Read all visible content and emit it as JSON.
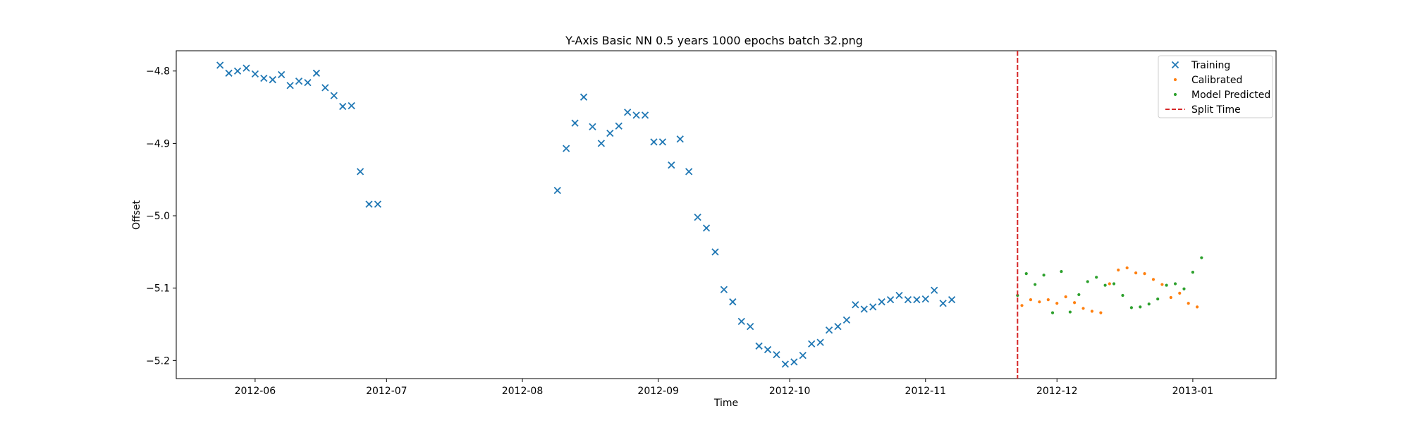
{
  "chart_data": {
    "type": "scatter",
    "title": "Y-Axis Basic NN 0.5 years 1000 epochs batch 32.png",
    "xlabel": "Time",
    "ylabel": "Offset",
    "xlim": [
      "2012-05-14",
      "2013-01-20"
    ],
    "ylim": [
      -5.225,
      -4.772
    ],
    "x_ticks": [
      "2012-06",
      "2012-07",
      "2012-08",
      "2012-09",
      "2012-10",
      "2012-11",
      "2012-12",
      "2013-01"
    ],
    "x_tick_dates": [
      "2012-06-01",
      "2012-07-01",
      "2012-08-01",
      "2012-09-01",
      "2012-10-01",
      "2012-11-01",
      "2012-12-01",
      "2013-01-01"
    ],
    "y_ticks": [
      -4.8,
      -4.9,
      -5.0,
      -5.1,
      -5.2
    ],
    "y_tick_labels": [
      "−4.8",
      "−4.9",
      "−5.0",
      "−5.1",
      "−5.2"
    ],
    "grid": false,
    "legend": "upper-right",
    "split_time": "2012-11-22",
    "series": [
      {
        "name": "Training",
        "marker": "x",
        "color": "#1f77b4",
        "points": [
          [
            "2012-05-24",
            -4.792
          ],
          [
            "2012-05-26",
            -4.803
          ],
          [
            "2012-05-28",
            -4.8
          ],
          [
            "2012-05-30",
            -4.796
          ],
          [
            "2012-06-01",
            -4.804
          ],
          [
            "2012-06-03",
            -4.81
          ],
          [
            "2012-06-05",
            -4.812
          ],
          [
            "2012-06-07",
            -4.805
          ],
          [
            "2012-06-09",
            -4.82
          ],
          [
            "2012-06-11",
            -4.814
          ],
          [
            "2012-06-13",
            -4.816
          ],
          [
            "2012-06-15",
            -4.803
          ],
          [
            "2012-06-17",
            -4.823
          ],
          [
            "2012-06-19",
            -4.834
          ],
          [
            "2012-06-21",
            -4.849
          ],
          [
            "2012-06-23",
            -4.848
          ],
          [
            "2012-06-25",
            -4.939
          ],
          [
            "2012-06-27",
            -4.984
          ],
          [
            "2012-06-29",
            -4.984
          ],
          [
            "2012-08-09",
            -4.965
          ],
          [
            "2012-08-11",
            -4.907
          ],
          [
            "2012-08-13",
            -4.872
          ],
          [
            "2012-08-15",
            -4.836
          ],
          [
            "2012-08-17",
            -4.877
          ],
          [
            "2012-08-19",
            -4.9
          ],
          [
            "2012-08-21",
            -4.886
          ],
          [
            "2012-08-23",
            -4.876
          ],
          [
            "2012-08-25",
            -4.857
          ],
          [
            "2012-08-27",
            -4.861
          ],
          [
            "2012-08-29",
            -4.861
          ],
          [
            "2012-08-31",
            -4.898
          ],
          [
            "2012-09-02",
            -4.898
          ],
          [
            "2012-09-04",
            -4.93
          ],
          [
            "2012-09-06",
            -4.894
          ],
          [
            "2012-09-08",
            -4.939
          ],
          [
            "2012-09-10",
            -5.002
          ],
          [
            "2012-09-12",
            -5.017
          ],
          [
            "2012-09-14",
            -5.05
          ],
          [
            "2012-09-16",
            -5.102
          ],
          [
            "2012-09-18",
            -5.119
          ],
          [
            "2012-09-20",
            -5.146
          ],
          [
            "2012-09-22",
            -5.153
          ],
          [
            "2012-09-24",
            -5.18
          ],
          [
            "2012-09-26",
            -5.185
          ],
          [
            "2012-09-28",
            -5.192
          ],
          [
            "2012-09-30",
            -5.205
          ],
          [
            "2012-10-02",
            -5.202
          ],
          [
            "2012-10-04",
            -5.193
          ],
          [
            "2012-10-06",
            -5.177
          ],
          [
            "2012-10-08",
            -5.175
          ],
          [
            "2012-10-10",
            -5.158
          ],
          [
            "2012-10-12",
            -5.153
          ],
          [
            "2012-10-14",
            -5.144
          ],
          [
            "2012-10-16",
            -5.123
          ],
          [
            "2012-10-18",
            -5.129
          ],
          [
            "2012-10-20",
            -5.126
          ],
          [
            "2012-10-22",
            -5.119
          ],
          [
            "2012-10-24",
            -5.116
          ],
          [
            "2012-10-26",
            -5.11
          ],
          [
            "2012-10-28",
            -5.116
          ],
          [
            "2012-10-30",
            -5.116
          ],
          [
            "2012-11-01",
            -5.115
          ],
          [
            "2012-11-03",
            -5.103
          ],
          [
            "2012-11-05",
            -5.121
          ],
          [
            "2012-11-07",
            -5.116
          ]
        ]
      },
      {
        "name": "Calibrated",
        "marker": "o",
        "color": "#ff7f0e",
        "points": [
          [
            "2012-11-23",
            -5.124
          ],
          [
            "2012-11-25",
            -5.116
          ],
          [
            "2012-11-27",
            -5.119
          ],
          [
            "2012-11-29",
            -5.116
          ],
          [
            "2012-12-01",
            -5.121
          ],
          [
            "2012-12-03",
            -5.112
          ],
          [
            "2012-12-05",
            -5.12
          ],
          [
            "2012-12-07",
            -5.128
          ],
          [
            "2012-12-09",
            -5.132
          ],
          [
            "2012-12-11",
            -5.134
          ],
          [
            "2012-12-13",
            -5.094
          ],
          [
            "2012-12-15",
            -5.075
          ],
          [
            "2012-12-17",
            -5.072
          ],
          [
            "2012-12-19",
            -5.079
          ],
          [
            "2012-12-21",
            -5.08
          ],
          [
            "2012-12-23",
            -5.088
          ],
          [
            "2012-12-25",
            -5.095
          ],
          [
            "2012-12-27",
            -5.113
          ],
          [
            "2012-12-29",
            -5.107
          ],
          [
            "2012-12-31",
            -5.121
          ],
          [
            "2013-01-02",
            -5.126
          ]
        ]
      },
      {
        "name": "Model Predicted",
        "marker": "o",
        "color": "#2ca02c",
        "points": [
          [
            "2012-11-22",
            -5.11
          ],
          [
            "2012-11-24",
            -5.08
          ],
          [
            "2012-11-26",
            -5.095
          ],
          [
            "2012-11-28",
            -5.082
          ],
          [
            "2012-11-30",
            -5.134
          ],
          [
            "2012-12-02",
            -5.077
          ],
          [
            "2012-12-04",
            -5.133
          ],
          [
            "2012-12-06",
            -5.109
          ],
          [
            "2012-12-08",
            -5.091
          ],
          [
            "2012-12-10",
            -5.085
          ],
          [
            "2012-12-12",
            -5.096
          ],
          [
            "2012-12-14",
            -5.094
          ],
          [
            "2012-12-16",
            -5.11
          ],
          [
            "2012-12-18",
            -5.127
          ],
          [
            "2012-12-20",
            -5.126
          ],
          [
            "2012-12-22",
            -5.122
          ],
          [
            "2012-12-24",
            -5.115
          ],
          [
            "2012-12-26",
            -5.096
          ],
          [
            "2012-12-28",
            -5.094
          ],
          [
            "2012-12-30",
            -5.101
          ],
          [
            "2013-01-01",
            -5.078
          ],
          [
            "2013-01-03",
            -5.058
          ]
        ]
      }
    ],
    "split_line": {
      "name": "Split Time",
      "color": "#d62728",
      "style": "dashed"
    }
  }
}
